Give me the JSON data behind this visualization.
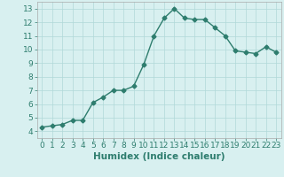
{
  "x": [
    0,
    1,
    2,
    3,
    4,
    5,
    6,
    7,
    8,
    9,
    10,
    11,
    12,
    13,
    14,
    15,
    16,
    17,
    18,
    19,
    20,
    21,
    22,
    23
  ],
  "y": [
    4.3,
    4.4,
    4.5,
    4.8,
    4.8,
    6.1,
    6.5,
    7.0,
    7.0,
    7.3,
    8.9,
    11.0,
    12.3,
    13.0,
    12.3,
    12.2,
    12.2,
    11.6,
    11.0,
    9.9,
    9.8,
    9.7,
    10.2,
    9.8
  ],
  "line_color": "#2e7d6e",
  "marker": "D",
  "marker_size": 2.5,
  "linewidth": 1.0,
  "xlabel": "Humidex (Indice chaleur)",
  "xlim": [
    -0.5,
    23.5
  ],
  "ylim": [
    3.5,
    13.5
  ],
  "yticks": [
    4,
    5,
    6,
    7,
    8,
    9,
    10,
    11,
    12,
    13
  ],
  "xticks": [
    0,
    1,
    2,
    3,
    4,
    5,
    6,
    7,
    8,
    9,
    10,
    11,
    12,
    13,
    14,
    15,
    16,
    17,
    18,
    19,
    20,
    21,
    22,
    23
  ],
  "background_color": "#d8f0f0",
  "grid_color": "#b0d8d8",
  "tick_fontsize": 6.5,
  "xlabel_fontsize": 7.5,
  "xlabel_fontweight": "bold"
}
